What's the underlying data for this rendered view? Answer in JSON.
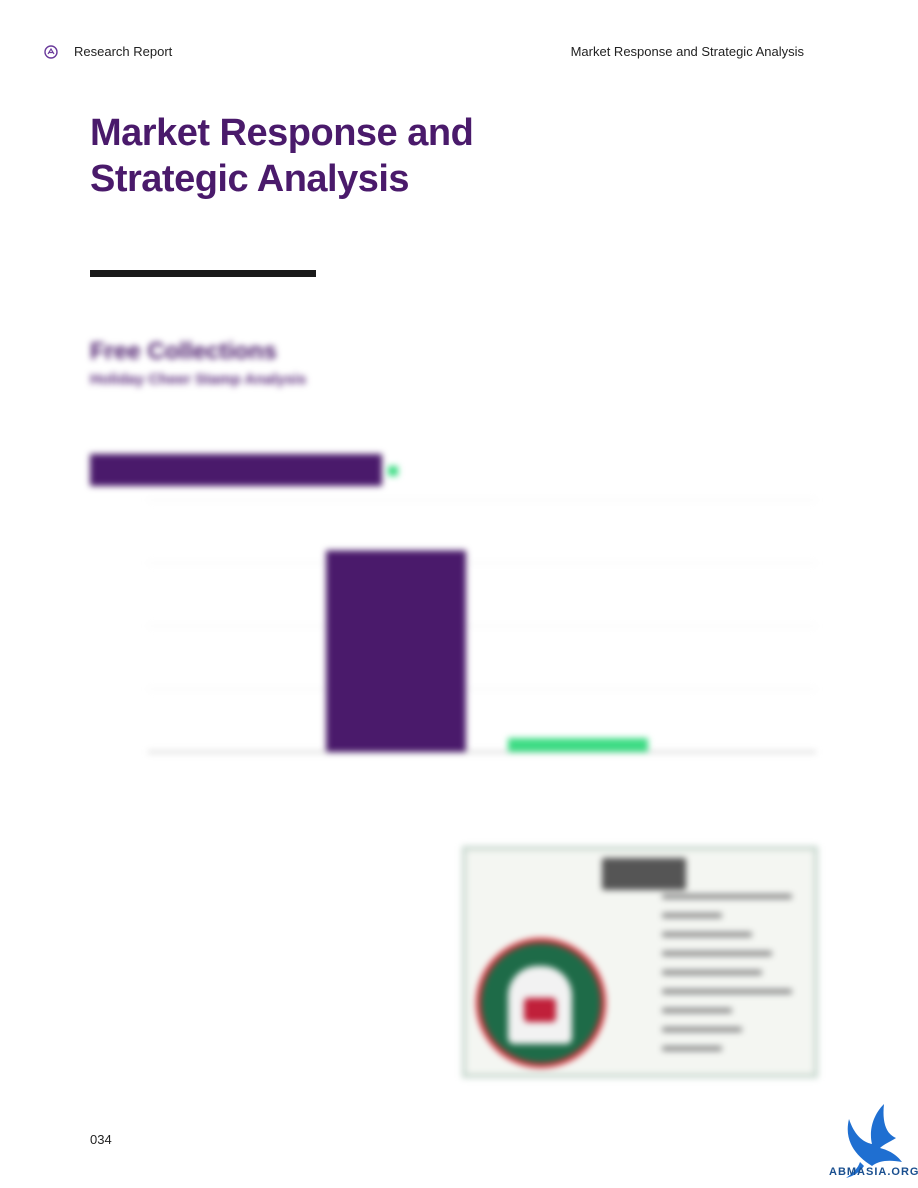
{
  "header": {
    "left_title": "Research Report",
    "right_title": "Market Response and Strategic Analysis"
  },
  "page": {
    "title": "Market Response and Strategic Analysis",
    "section_title": "Free Collections",
    "section_subtitle": "Holiday Cheer Stamp Analysis",
    "page_number": "034"
  },
  "chart_data": {
    "type": "bar",
    "categories": [
      "",
      ""
    ],
    "values": [
      800,
      55
    ],
    "colors": [
      "#4a1a6b",
      "#3ddc84"
    ],
    "legend": [
      {
        "label": "",
        "color": "#4a1a6b"
      },
      {
        "label": "",
        "color": "#3ddc84"
      }
    ],
    "ylim": [
      0,
      1000
    ],
    "yticks": [
      0,
      250,
      500,
      750,
      1000
    ],
    "ytick_labels": [
      "",
      "",
      "",
      "",
      ""
    ],
    "xlabel": "",
    "ylabel": "",
    "grid": true
  },
  "body": {
    "paragraphs": [
      "",
      ""
    ]
  },
  "colors": {
    "accent": "#4a1a6b",
    "secondary": "#3ddc84"
  },
  "icons": {
    "header_logo": "logo-icon",
    "watermark": "bird-logo"
  },
  "watermark": {
    "text": "ABMASIA.ORG"
  }
}
